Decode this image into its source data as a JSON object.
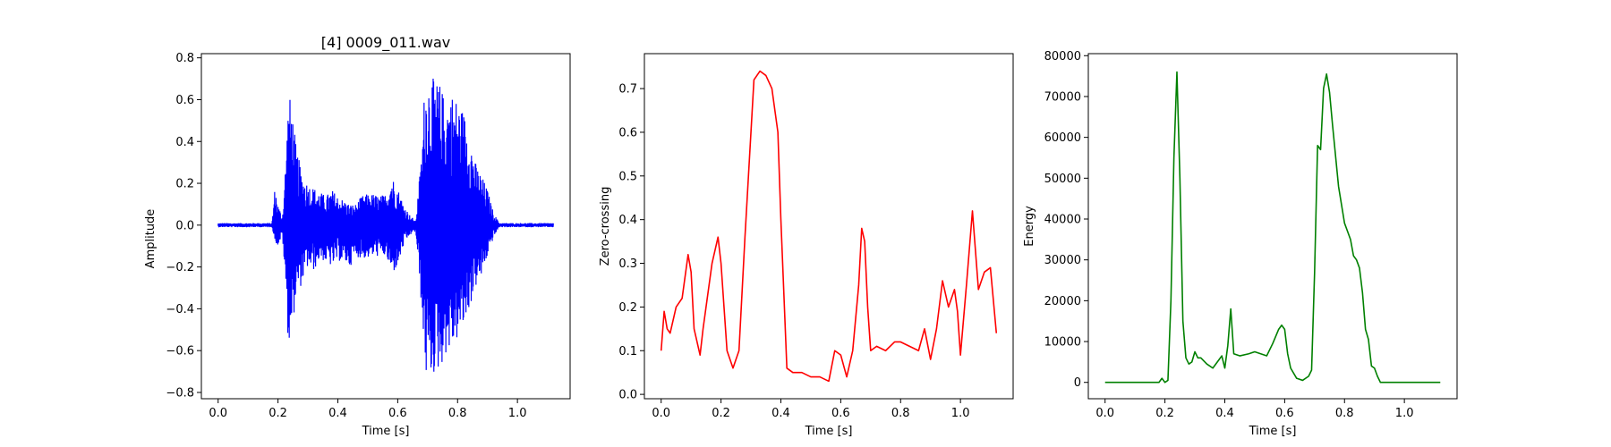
{
  "chart_data": [
    {
      "type": "line",
      "title": "[4] 0009_011.wav",
      "xlabel": "Time [s]",
      "ylabel": "Amplitude",
      "color": "#0000ff",
      "xlim": [
        -0.056,
        1.176
      ],
      "ylim": [
        -0.83,
        0.82
      ],
      "xticks": [
        0.0,
        0.2,
        0.4,
        0.6,
        0.8,
        1.0
      ],
      "xtick_labels": [
        "0.0",
        "0.2",
        "0.4",
        "0.6",
        "0.8",
        "1.0"
      ],
      "yticks": [
        -0.8,
        -0.6,
        -0.4,
        -0.2,
        0.0,
        0.2,
        0.4,
        0.6,
        0.8
      ],
      "ytick_labels": [
        "−0.8",
        "−0.6",
        "−0.4",
        "−0.2",
        "0.0",
        "0.2",
        "0.4",
        "0.6",
        "0.8"
      ],
      "waveform_envelope": {
        "time": [
          0.0,
          0.18,
          0.19,
          0.2,
          0.215,
          0.225,
          0.235,
          0.245,
          0.26,
          0.28,
          0.3,
          0.32,
          0.34,
          0.36,
          0.38,
          0.4,
          0.42,
          0.44,
          0.46,
          0.48,
          0.5,
          0.52,
          0.54,
          0.56,
          0.58,
          0.6,
          0.62,
          0.64,
          0.66,
          0.68,
          0.69,
          0.7,
          0.72,
          0.74,
          0.76,
          0.78,
          0.8,
          0.82,
          0.84,
          0.86,
          0.88,
          0.9,
          0.92,
          0.94,
          1.12
        ],
        "upper": [
          0.01,
          0.01,
          0.19,
          0.1,
          0.04,
          0.3,
          0.62,
          0.6,
          0.38,
          0.25,
          0.2,
          0.18,
          0.16,
          0.14,
          0.17,
          0.14,
          0.12,
          0.1,
          0.1,
          0.14,
          0.15,
          0.15,
          0.14,
          0.15,
          0.24,
          0.18,
          0.1,
          0.05,
          0.02,
          0.35,
          0.68,
          0.73,
          0.7,
          0.68,
          0.6,
          0.64,
          0.6,
          0.55,
          0.45,
          0.3,
          0.24,
          0.17,
          0.06,
          0.01,
          0.01
        ],
        "lower": [
          -0.01,
          -0.01,
          -0.08,
          -0.1,
          -0.05,
          -0.3,
          -0.58,
          -0.52,
          -0.35,
          -0.28,
          -0.2,
          -0.22,
          -0.16,
          -0.18,
          -0.2,
          -0.17,
          -0.18,
          -0.2,
          -0.15,
          -0.16,
          -0.16,
          -0.15,
          -0.15,
          -0.15,
          -0.24,
          -0.2,
          -0.1,
          -0.05,
          -0.03,
          -0.4,
          -0.7,
          -0.76,
          -0.72,
          -0.7,
          -0.62,
          -0.6,
          -0.55,
          -0.5,
          -0.4,
          -0.3,
          -0.25,
          -0.15,
          -0.06,
          -0.01,
          -0.01
        ]
      }
    },
    {
      "type": "line",
      "title": "",
      "xlabel": "Time [s]",
      "ylabel": "Zero-crossing",
      "color": "#ff0000",
      "xlim": [
        -0.056,
        1.176
      ],
      "ylim": [
        -0.01,
        0.78
      ],
      "xticks": [
        0.0,
        0.2,
        0.4,
        0.6,
        0.8,
        1.0
      ],
      "xtick_labels": [
        "0.0",
        "0.2",
        "0.4",
        "0.6",
        "0.8",
        "1.0"
      ],
      "yticks": [
        0.0,
        0.1,
        0.2,
        0.3,
        0.4,
        0.5,
        0.6,
        0.7
      ],
      "ytick_labels": [
        "0.0",
        "0.1",
        "0.2",
        "0.3",
        "0.4",
        "0.5",
        "0.6",
        "0.7"
      ],
      "x": [
        0.0,
        0.01,
        0.02,
        0.03,
        0.05,
        0.07,
        0.09,
        0.1,
        0.11,
        0.13,
        0.14,
        0.15,
        0.17,
        0.19,
        0.2,
        0.21,
        0.22,
        0.24,
        0.26,
        0.28,
        0.3,
        0.31,
        0.33,
        0.35,
        0.37,
        0.39,
        0.4,
        0.42,
        0.44,
        0.47,
        0.5,
        0.53,
        0.56,
        0.58,
        0.6,
        0.62,
        0.64,
        0.66,
        0.67,
        0.68,
        0.69,
        0.7,
        0.72,
        0.75,
        0.78,
        0.8,
        0.83,
        0.86,
        0.88,
        0.9,
        0.92,
        0.94,
        0.96,
        0.98,
        0.99,
        1.0,
        1.02,
        1.04,
        1.05,
        1.06,
        1.08,
        1.1,
        1.12
      ],
      "y": [
        0.1,
        0.19,
        0.15,
        0.14,
        0.2,
        0.22,
        0.32,
        0.28,
        0.15,
        0.09,
        0.15,
        0.2,
        0.3,
        0.36,
        0.3,
        0.2,
        0.1,
        0.06,
        0.1,
        0.36,
        0.6,
        0.72,
        0.74,
        0.73,
        0.7,
        0.6,
        0.4,
        0.06,
        0.05,
        0.05,
        0.04,
        0.04,
        0.03,
        0.1,
        0.09,
        0.04,
        0.1,
        0.25,
        0.38,
        0.35,
        0.2,
        0.1,
        0.11,
        0.1,
        0.12,
        0.12,
        0.11,
        0.1,
        0.15,
        0.08,
        0.15,
        0.26,
        0.2,
        0.24,
        0.19,
        0.09,
        0.25,
        0.42,
        0.33,
        0.24,
        0.28,
        0.29,
        0.14
      ]
    },
    {
      "type": "line",
      "title": "",
      "xlabel": "Time [s]",
      "ylabel": "Energy",
      "color": "#008000",
      "xlim": [
        -0.056,
        1.176
      ],
      "ylim": [
        -4000,
        80500
      ],
      "xticks": [
        0.0,
        0.2,
        0.4,
        0.6,
        0.8,
        1.0
      ],
      "xtick_labels": [
        "0.0",
        "0.2",
        "0.4",
        "0.6",
        "0.8",
        "1.0"
      ],
      "yticks": [
        0,
        10000,
        20000,
        30000,
        40000,
        50000,
        60000,
        70000,
        80000
      ],
      "ytick_labels": [
        "0",
        "10000",
        "20000",
        "30000",
        "40000",
        "50000",
        "60000",
        "70000",
        "80000"
      ],
      "x": [
        0.0,
        0.18,
        0.19,
        0.2,
        0.21,
        0.22,
        0.23,
        0.24,
        0.25,
        0.26,
        0.27,
        0.28,
        0.29,
        0.3,
        0.31,
        0.32,
        0.34,
        0.36,
        0.38,
        0.39,
        0.4,
        0.41,
        0.42,
        0.43,
        0.45,
        0.48,
        0.5,
        0.52,
        0.54,
        0.56,
        0.58,
        0.59,
        0.6,
        0.61,
        0.62,
        0.64,
        0.66,
        0.68,
        0.69,
        0.7,
        0.71,
        0.72,
        0.73,
        0.74,
        0.75,
        0.76,
        0.78,
        0.8,
        0.82,
        0.83,
        0.84,
        0.85,
        0.86,
        0.87,
        0.88,
        0.89,
        0.9,
        0.91,
        0.92,
        1.12
      ],
      "y": [
        0,
        0,
        1000,
        0,
        500,
        20000,
        55000,
        76000,
        50000,
        15000,
        6000,
        4500,
        5000,
        7500,
        6000,
        6000,
        4500,
        3500,
        5500,
        6500,
        3500,
        9000,
        18000,
        7000,
        6500,
        7000,
        7500,
        7000,
        6500,
        9500,
        13000,
        14000,
        13000,
        7000,
        3500,
        1000,
        500,
        1500,
        3000,
        27000,
        58000,
        57000,
        72000,
        75500,
        71000,
        63000,
        48000,
        39000,
        35000,
        31000,
        30000,
        28000,
        22000,
        13000,
        10500,
        4000,
        3500,
        1500,
        0,
        0
      ]
    }
  ]
}
